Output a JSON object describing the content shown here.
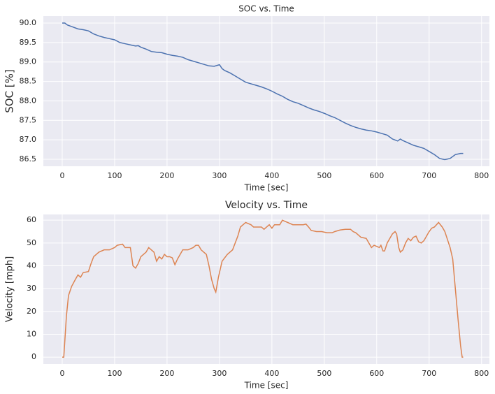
{
  "chart_data": [
    {
      "type": "line",
      "title": "SOC vs. Time",
      "xlabel": "Time [sec]",
      "ylabel": "SOC [%]",
      "color": "#4c72b0",
      "grid": true,
      "xlim": [
        -36,
        815
      ],
      "ylim": [
        86.32,
        90.18
      ],
      "xticks": [
        0,
        100,
        200,
        300,
        400,
        500,
        600,
        700,
        800
      ],
      "yticks": [
        86.5,
        {
          "value": 87,
          "label": "87.0"
        },
        87.5,
        {
          "value": 88,
          "label": "88.0"
        },
        88.5,
        {
          "value": 89,
          "label": "89.0"
        },
        89.5,
        {
          "value": 90,
          "label": "90.0"
        }
      ],
      "x": [
        0,
        5,
        10,
        20,
        30,
        40,
        50,
        60,
        70,
        80,
        90,
        100,
        110,
        120,
        130,
        140,
        145,
        150,
        160,
        170,
        180,
        190,
        200,
        210,
        220,
        230,
        240,
        250,
        260,
        270,
        280,
        290,
        300,
        305,
        310,
        320,
        330,
        340,
        350,
        360,
        370,
        380,
        390,
        400,
        410,
        420,
        430,
        440,
        450,
        460,
        470,
        480,
        490,
        500,
        510,
        520,
        530,
        540,
        550,
        560,
        570,
        580,
        590,
        600,
        610,
        620,
        630,
        640,
        645,
        650,
        660,
        670,
        680,
        690,
        700,
        710,
        720,
        730,
        740,
        750,
        760,
        765
      ],
      "values": [
        90.0,
        90.0,
        89.95,
        89.9,
        89.85,
        89.83,
        89.8,
        89.72,
        89.67,
        89.63,
        89.6,
        89.57,
        89.5,
        89.47,
        89.44,
        89.41,
        89.42,
        89.38,
        89.33,
        89.27,
        89.25,
        89.24,
        89.2,
        89.17,
        89.15,
        89.12,
        89.06,
        89.02,
        88.98,
        88.94,
        88.9,
        88.89,
        88.93,
        88.83,
        88.78,
        88.72,
        88.64,
        88.56,
        88.48,
        88.44,
        88.4,
        88.36,
        88.31,
        88.25,
        88.18,
        88.12,
        88.04,
        87.98,
        87.94,
        87.88,
        87.82,
        87.77,
        87.73,
        87.68,
        87.62,
        87.57,
        87.5,
        87.43,
        87.37,
        87.32,
        87.28,
        87.25,
        87.23,
        87.2,
        87.16,
        87.12,
        87.02,
        86.97,
        87.02,
        86.98,
        86.92,
        86.86,
        86.82,
        86.78,
        86.7,
        86.62,
        86.52,
        86.49,
        86.52,
        86.62,
        86.65,
        86.65
      ]
    },
    {
      "type": "line",
      "title": "Velocity vs. Time",
      "xlabel": "Time [sec]",
      "ylabel": "Velocity [mph]",
      "color": "#dd8452",
      "grid": true,
      "xlim": [
        -36,
        815
      ],
      "ylim": [
        -3,
        62.5
      ],
      "xticks": [
        0,
        100,
        200,
        300,
        400,
        500,
        600,
        700,
        800
      ],
      "yticks": [
        0,
        10,
        20,
        30,
        40,
        50,
        60
      ],
      "x": [
        0,
        3,
        8,
        12,
        18,
        25,
        30,
        35,
        40,
        50,
        55,
        60,
        70,
        80,
        90,
        100,
        105,
        115,
        120,
        130,
        135,
        140,
        145,
        150,
        160,
        165,
        170,
        175,
        180,
        185,
        190,
        195,
        200,
        205,
        210,
        215,
        220,
        230,
        240,
        250,
        255,
        260,
        265,
        275,
        280,
        285,
        290,
        293,
        298,
        305,
        315,
        325,
        335,
        340,
        350,
        360,
        365,
        375,
        380,
        385,
        390,
        395,
        400,
        405,
        415,
        420,
        430,
        440,
        450,
        460,
        465,
        470,
        475,
        485,
        495,
        505,
        515,
        520,
        530,
        540,
        550,
        555,
        560,
        570,
        580,
        585,
        590,
        595,
        605,
        608,
        612,
        615,
        620,
        630,
        635,
        638,
        642,
        645,
        650,
        655,
        660,
        665,
        670,
        675,
        680,
        685,
        690,
        695,
        700,
        705,
        710,
        718,
        725,
        730,
        735,
        740,
        745,
        750,
        755,
        760,
        763,
        765
      ],
      "values": [
        0,
        0,
        18,
        27,
        31,
        34,
        36,
        35,
        37,
        37.5,
        41,
        44,
        46,
        47,
        47,
        48,
        49,
        49.5,
        48,
        48,
        40,
        39,
        41,
        44,
        46,
        48,
        47,
        46,
        42,
        44,
        43,
        45,
        44,
        44,
        43.5,
        40.5,
        43,
        47,
        47,
        48,
        49,
        49,
        47,
        45,
        40,
        34,
        30,
        28.5,
        35,
        42,
        45,
        47,
        53,
        57,
        59,
        58,
        57,
        57,
        57,
        56,
        57,
        58,
        56.5,
        58,
        58,
        60,
        59,
        58,
        58,
        58,
        58.3,
        57,
        55.5,
        55,
        55,
        54.5,
        54.5,
        55,
        55.7,
        56,
        56,
        55,
        54.5,
        52.5,
        52,
        50,
        48,
        49,
        48,
        49,
        46.5,
        46.5,
        50,
        54,
        55,
        54,
        48,
        46,
        47,
        50,
        52,
        51,
        52.5,
        53,
        50.5,
        50,
        51,
        53,
        55,
        56.5,
        57,
        59,
        57,
        55,
        51.5,
        48,
        43,
        30,
        17,
        5,
        0,
        0
      ]
    }
  ]
}
